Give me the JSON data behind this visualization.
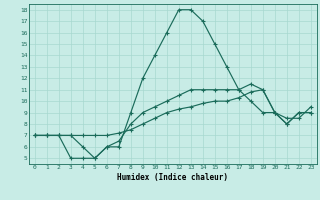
{
  "xlabel": "Humidex (Indice chaleur)",
  "bg_color": "#c8ece6",
  "line_color": "#1a6b5a",
  "grid_color": "#a8d8d0",
  "xlim": [
    -0.5,
    23.5
  ],
  "ylim": [
    4.5,
    18.5
  ],
  "xticks": [
    0,
    1,
    2,
    3,
    4,
    5,
    6,
    7,
    8,
    9,
    10,
    11,
    12,
    13,
    14,
    15,
    16,
    17,
    18,
    19,
    20,
    21,
    22,
    23
  ],
  "yticks": [
    5,
    6,
    7,
    8,
    9,
    10,
    11,
    12,
    13,
    14,
    15,
    16,
    17,
    18
  ],
  "line1_x": [
    0,
    1,
    2,
    3,
    4,
    5,
    6,
    7,
    8,
    9,
    10,
    11,
    12,
    13,
    14,
    15,
    16,
    17,
    18,
    19,
    20,
    21,
    22,
    23
  ],
  "line1_y": [
    7,
    7,
    7,
    5,
    5,
    5,
    6,
    6,
    9,
    12,
    14,
    16,
    18,
    18,
    17,
    15,
    13,
    11,
    10,
    9,
    9,
    8,
    9,
    9
  ],
  "line2_x": [
    0,
    1,
    2,
    3,
    4,
    5,
    6,
    7,
    8,
    9,
    10,
    11,
    12,
    13,
    14,
    15,
    16,
    17,
    18,
    19,
    20,
    21,
    22,
    23
  ],
  "line2_y": [
    7,
    7,
    7,
    7,
    6,
    5,
    6,
    6.5,
    8,
    9,
    9.5,
    10,
    10.5,
    11,
    11,
    11,
    11,
    11,
    11.5,
    11,
    9,
    8,
    9,
    9
  ],
  "line3_x": [
    0,
    1,
    2,
    3,
    4,
    5,
    6,
    7,
    8,
    9,
    10,
    11,
    12,
    13,
    14,
    15,
    16,
    17,
    18,
    19,
    20,
    21,
    22,
    23
  ],
  "line3_y": [
    7,
    7,
    7,
    7,
    7,
    7,
    7,
    7.2,
    7.5,
    8,
    8.5,
    9,
    9.3,
    9.5,
    9.8,
    10,
    10,
    10.3,
    10.8,
    11,
    9,
    8.5,
    8.5,
    9.5
  ],
  "xlabel_fontsize": 5.5,
  "tick_fontsize": 4.5,
  "linewidth": 0.85,
  "markersize": 2.5
}
